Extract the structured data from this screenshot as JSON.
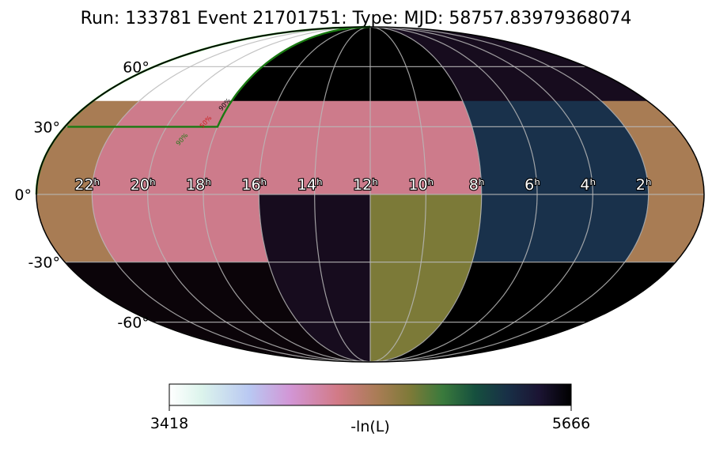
{
  "chart_data": {
    "type": "heatmap",
    "projection": "mollweide",
    "title": "Run: 133781 Event 21701751: Type:  MJD: 58757.83979368074",
    "ra_tick_labels": [
      "22ʰ",
      "20ʰ",
      "18ʰ",
      "16ʰ",
      "14ʰ",
      "12ʰ",
      "10ʰ",
      "8ʰ",
      "6ʰ",
      "4ʰ",
      "2ʰ"
    ],
    "ra_tick_hours": [
      22,
      20,
      18,
      16,
      14,
      12,
      10,
      8,
      6,
      4,
      2
    ],
    "dec_tick_labels": [
      "60°",
      "30°",
      "0°",
      "-30°",
      "-60°"
    ],
    "dec_tick_degrees": [
      60,
      30,
      0,
      -30,
      -60
    ],
    "contour_labels": [
      "90%",
      "50%",
      "90%"
    ],
    "colorbar": {
      "label": "-ln(L)",
      "min": 3418,
      "max": 5666,
      "min_label": "3418",
      "max_label": "5666",
      "colormap": "cubehelix_r"
    },
    "pixels": [
      {
        "ra_hours": [
          18,
          24
        ],
        "dec": [
          30,
          90
        ],
        "value": 3418,
        "color": "#ffffff"
      },
      {
        "ra_hours": [
          14,
          18
        ],
        "dec": [
          30,
          90
        ],
        "value": 5666,
        "color": "#000000"
      },
      {
        "ra_hours": [
          8,
          14
        ],
        "dec": [
          30,
          90
        ],
        "value": 5666,
        "color": "#000000"
      },
      {
        "ra_hours": [
          0,
          8
        ],
        "dec": [
          30,
          90
        ],
        "value": 5600,
        "color": "#170c1e"
      },
      {
        "ra_hours": [
          0,
          2
        ],
        "dec": [
          -42,
          42
        ],
        "value": 4200,
        "color": "#a87c54"
      },
      {
        "ra_hours": [
          22,
          24
        ],
        "dec": [
          -42,
          42
        ],
        "value": 4200,
        "color": "#a87c54"
      },
      {
        "ra_hours": [
          14,
          22
        ],
        "dec": [
          -42,
          42
        ],
        "value": 4050,
        "color": "#cd7b8b"
      },
      {
        "ra_hours": [
          8,
          14
        ],
        "dec": [
          -42,
          42
        ],
        "value": 4050,
        "color": "#cd7b8b"
      },
      {
        "ra_hours": [
          2,
          8
        ],
        "dec": [
          -42,
          42
        ],
        "value": 5000,
        "color": "#19314b"
      },
      {
        "ra_hours": [
          12,
          16
        ],
        "dec": [
          -90,
          0
        ],
        "value": 5600,
        "color": "#170c1e"
      },
      {
        "ra_hours": [
          16,
          24
        ],
        "dec": [
          -90,
          -30
        ],
        "value": 5650,
        "color": "#0b0409"
      },
      {
        "ra_hours": [
          8,
          12
        ],
        "dec": [
          -90,
          0
        ],
        "value": 4500,
        "color": "#7c7a38"
      },
      {
        "ra_hours": [
          0,
          8
        ],
        "dec": [
          -90,
          -30
        ],
        "value": 5666,
        "color": "#000000"
      }
    ]
  }
}
